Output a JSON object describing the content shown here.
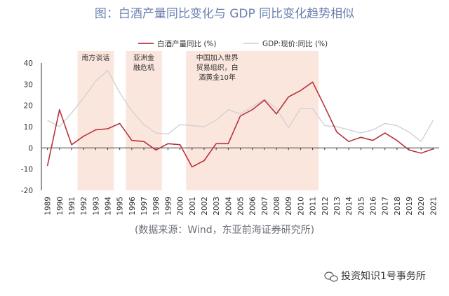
{
  "chart_data": {
    "type": "line",
    "title": "图：白酒产量同比变化与 GDP 同比变化趋势相似",
    "source": "(数据来源：Wind，东亚前海证券研究所)",
    "x": [
      "1989",
      "1990",
      "1991",
      "1992",
      "1993",
      "1994",
      "1995",
      "1996",
      "1997",
      "1998",
      "1999",
      "2000",
      "2001",
      "2002",
      "2003",
      "2004",
      "2005",
      "2006",
      "2007",
      "2008",
      "2009",
      "2010",
      "2011",
      "2012",
      "2013",
      "2014",
      "2015",
      "2016",
      "2017",
      "2018",
      "2019",
      "2020",
      "2021"
    ],
    "ylim": [
      -20,
      40
    ],
    "yticks": [
      "-20",
      "-10",
      "0",
      "10",
      "20",
      "30",
      "40"
    ],
    "grid": false,
    "legend": "top",
    "series": [
      {
        "name": "白酒产量同比 (%)",
        "color": "#b8333b",
        "values": [
          -8.5,
          18,
          1.5,
          5.5,
          8.5,
          9,
          11.5,
          3.5,
          3,
          -1,
          2,
          1.5,
          -9,
          -6,
          2,
          2,
          15,
          18,
          22.5,
          16,
          24,
          27,
          31,
          19.5,
          7.5,
          3,
          5,
          3.5,
          7,
          3.5,
          -1,
          -2.5,
          -0.5
        ]
      },
      {
        "name": "GDP:现价:同比 (%)",
        "color": "#d2d2d2",
        "values": [
          13,
          10,
          16.5,
          23.5,
          31.5,
          36.5,
          26,
          17.5,
          11,
          7,
          6.5,
          11,
          10.5,
          10,
          13,
          18,
          16,
          19.5,
          23,
          18.5,
          9.5,
          18.5,
          18.5,
          10.5,
          10,
          8.5,
          7,
          8.5,
          11.5,
          10.5,
          7.5,
          3,
          13
        ]
      }
    ],
    "shaded_periods": [
      {
        "from": "1992",
        "to": "1994",
        "label_lines": [
          "南方谈话"
        ]
      },
      {
        "from": "1996",
        "to": "1998",
        "label_lines": [
          "亚洲金",
          "融危机"
        ]
      },
      {
        "from": "2001",
        "to": "2011",
        "label_lines": [
          "中国加入世界",
          "贸易组织，白",
          "酒黄金10年"
        ]
      }
    ],
    "shade_color": "#fbe6de"
  },
  "watermark": "投资知识1号事务所"
}
